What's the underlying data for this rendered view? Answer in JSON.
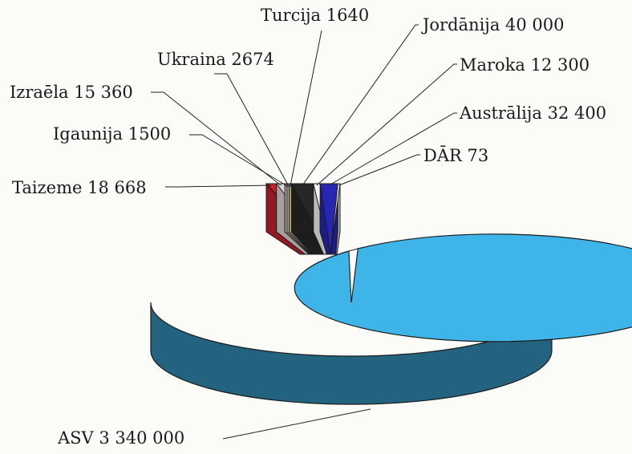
{
  "chart_data": {
    "type": "pie",
    "title": "",
    "three_d": true,
    "slices": [
      {
        "name": "ASV",
        "value": 3340000,
        "value_text": "3 340 000",
        "color": "#3fb4e8"
      },
      {
        "name": "Taizeme",
        "value": 18668,
        "value_text": "18 668",
        "color": "#c8202f"
      },
      {
        "name": "Izraēla",
        "value": 15360,
        "value_text": "15 360",
        "color": "#e2d4d4"
      },
      {
        "name": "Igaunija",
        "value": 1500,
        "value_text": "1500",
        "color": "#f4e6ef"
      },
      {
        "name": "Ukraina",
        "value": 2674,
        "value_text": "2674",
        "color": "#efe6df"
      },
      {
        "name": "Turcija",
        "value": 1640,
        "value_text": "1640",
        "color": "#f8f080"
      },
      {
        "name": "Jordānija",
        "value": 40000,
        "value_text": "40 000",
        "color": "#272727"
      },
      {
        "name": "Maroka",
        "value": 12300,
        "value_text": "12 300",
        "color": "#f5f5f0"
      },
      {
        "name": "Austrālija",
        "value": 32400,
        "value_text": "32 400",
        "color": "#2727b3"
      },
      {
        "name": "DĀR",
        "value": 73,
        "value_text": "73",
        "color": "#f2f2ee"
      }
    ],
    "legend": "none"
  }
}
